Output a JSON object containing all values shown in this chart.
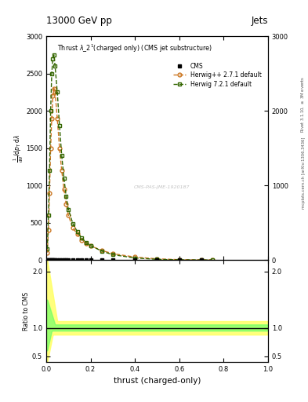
{
  "title_top": "13000 GeV pp",
  "title_right": "Jets",
  "main_title": "Thrust $\\lambda\\_2^1$(charged only) (CMS jet substructure)",
  "ylabel_main": "$\\frac{1}{\\mathrm{d}N} / \\mathrm{d}p_\\mathrm{T} \\, \\mathrm{d}\\lambda$",
  "ylabel_ratio": "Ratio to CMS",
  "xlabel": "thrust (charged-only)",
  "right_label": "Rivet 3.1.10, $\\geq$ 3M events",
  "right_label2": "mcplots.cern.ch [arXiv:1306.3436]",
  "watermark": "CMS-PAS-JME-1920187",
  "herwig_x": [
    0.005,
    0.01,
    0.015,
    0.02,
    0.025,
    0.03,
    0.035,
    0.04,
    0.05,
    0.06,
    0.07,
    0.08,
    0.09,
    0.1,
    0.12,
    0.14,
    0.16,
    0.18,
    0.2,
    0.25,
    0.3,
    0.4,
    0.5,
    0.6,
    0.7,
    0.75
  ],
  "herwig_y": [
    100,
    400,
    900,
    1500,
    1900,
    2200,
    2300,
    2250,
    1900,
    1500,
    1200,
    950,
    750,
    600,
    430,
    350,
    270,
    220,
    190,
    130,
    85,
    40,
    16,
    5,
    1.5,
    1
  ],
  "herwig7_x": [
    0.005,
    0.01,
    0.015,
    0.02,
    0.025,
    0.03,
    0.035,
    0.04,
    0.05,
    0.06,
    0.07,
    0.08,
    0.09,
    0.1,
    0.12,
    0.14,
    0.16,
    0.18,
    0.2,
    0.25,
    0.3,
    0.4,
    0.5,
    0.6,
    0.7,
    0.75
  ],
  "herwig7_y": [
    150,
    600,
    1200,
    2000,
    2500,
    2700,
    2750,
    2600,
    2250,
    1800,
    1400,
    1100,
    850,
    680,
    490,
    380,
    295,
    235,
    195,
    120,
    72,
    28,
    9,
    2,
    0.5,
    0.3
  ],
  "cms_x": [
    0.005,
    0.01,
    0.015,
    0.02,
    0.025,
    0.03,
    0.035,
    0.04,
    0.05,
    0.06,
    0.07,
    0.08,
    0.09,
    0.1,
    0.12,
    0.14,
    0.16,
    0.18,
    0.2,
    0.25,
    0.3,
    0.4,
    0.5,
    0.6,
    0.7
  ],
  "cms_y": [
    0,
    0,
    0,
    0,
    0,
    0,
    0,
    0,
    0,
    0,
    0,
    0,
    0,
    0,
    0,
    0,
    0,
    0,
    0,
    0,
    0,
    0,
    0,
    0,
    0
  ],
  "ylim_main": [
    0,
    3000
  ],
  "ylim_ratio": [
    0.4,
    2.2
  ],
  "herwig_color": "#cc7722",
  "herwig7_color": "#336600",
  "cms_color": "#000000"
}
